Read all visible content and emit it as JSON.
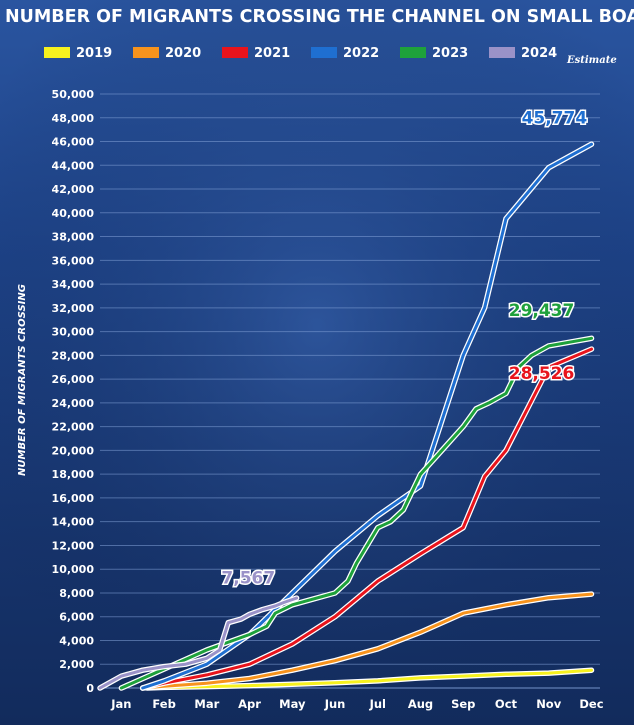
{
  "chart_data": {
    "type": "line",
    "title": "NUMBER OF MIGRANTS CROSSING THE CHANNEL ON SMALL BOATS",
    "ylabel": "NUMBER OF MIGRANTS CROSSING",
    "xlabel": "",
    "note": "Estimate",
    "ylim": [
      0,
      50000
    ],
    "yticks": [
      0,
      2000,
      4000,
      6000,
      8000,
      10000,
      12000,
      14000,
      16000,
      18000,
      20000,
      22000,
      24000,
      26000,
      28000,
      30000,
      32000,
      34000,
      36000,
      38000,
      40000,
      42000,
      44000,
      46000,
      48000,
      50000
    ],
    "ytick_labels": [
      "0",
      "2,000",
      "4,000",
      "6,000",
      "8,000",
      "10,000",
      "12,000",
      "14,000",
      "16,000",
      "18,000",
      "20,000",
      "22,000",
      "24,000",
      "26,000",
      "28,000",
      "30,000",
      "32,000",
      "34,000",
      "36,000",
      "38,000",
      "40,000",
      "42,000",
      "44,000",
      "46,000",
      "48,000",
      "50,000"
    ],
    "categories": [
      "Jan",
      "Feb",
      "Mar",
      "Apr",
      "May",
      "Jun",
      "Jul",
      "Aug",
      "Sep",
      "Oct",
      "Nov",
      "Dec"
    ],
    "xlim": [
      0.5,
      12.2
    ],
    "grid": true,
    "legend_position": "top",
    "series": [
      {
        "name": "2019",
        "color": "#f7f21e",
        "x": [
          1.6,
          2,
          3,
          4,
          5,
          6,
          7,
          8,
          9,
          10,
          11,
          12
        ],
        "y": [
          0,
          50,
          120,
          200,
          320,
          450,
          600,
          850,
          1000,
          1150,
          1250,
          1500
        ]
      },
      {
        "name": "2020",
        "color": "#f7931d",
        "x": [
          1.5,
          2,
          3,
          4,
          5,
          6,
          7,
          8,
          9,
          10,
          11,
          12
        ],
        "y": [
          0,
          150,
          400,
          800,
          1500,
          2300,
          3300,
          4700,
          6300,
          7000,
          7600,
          7900
        ]
      },
      {
        "name": "2021",
        "color": "#e8141c",
        "x": [
          1.5,
          2,
          3,
          4,
          5,
          6,
          7,
          8,
          9,
          9.5,
          10,
          10.5,
          11,
          12
        ],
        "y": [
          0,
          400,
          1100,
          2000,
          3700,
          6000,
          9000,
          11300,
          13500,
          17800,
          20000,
          23500,
          27000,
          28526
        ]
      },
      {
        "name": "2022",
        "color": "#1f6fd1",
        "x": [
          1.5,
          2,
          3,
          4,
          5,
          6,
          7,
          8,
          9,
          9.5,
          10,
          11,
          12
        ],
        "y": [
          0,
          600,
          2000,
          4500,
          8000,
          11500,
          14500,
          17000,
          28000,
          32000,
          39500,
          43800,
          45774
        ]
      },
      {
        "name": "2023",
        "color": "#1ea13b",
        "x": [
          1,
          1.5,
          2,
          3,
          4,
          4.4,
          4.6,
          5,
          6,
          6.3,
          6.5,
          7,
          7.3,
          7.6,
          8,
          8.5,
          9,
          9.3,
          9.6,
          10,
          10.3,
          10.6,
          11,
          12
        ],
        "y": [
          0,
          800,
          1600,
          3200,
          4500,
          5200,
          6300,
          7000,
          8000,
          9000,
          10500,
          13500,
          14000,
          15000,
          18000,
          20000,
          22000,
          23500,
          24000,
          24800,
          27000,
          28000,
          28800,
          29437
        ]
      },
      {
        "name": "2024",
        "color": "#9a92c8",
        "x": [
          0.5,
          1,
          1.5,
          2,
          2.5,
          3,
          3.3,
          3.5,
          3.8,
          4,
          4.3,
          4.6,
          4.8,
          5.1
        ],
        "y": [
          0,
          1000,
          1500,
          1800,
          2000,
          2500,
          3200,
          5500,
          5800,
          6200,
          6600,
          6900,
          7200,
          7567
        ]
      }
    ],
    "annotations": [
      {
        "series": "2022",
        "text": "45,774",
        "color": "#1f6fd1",
        "x": 11.9,
        "y": 47500
      },
      {
        "series": "2023",
        "text": "29,437",
        "color": "#1ea13b",
        "x": 11.6,
        "y": 31300
      },
      {
        "series": "2021",
        "text": "28,526",
        "color": "#e8141c",
        "x": 11.6,
        "y": 26000
      },
      {
        "series": "2024",
        "text": "7,567",
        "color": "#9a92c8",
        "x": 4.6,
        "y": 8800
      }
    ]
  }
}
